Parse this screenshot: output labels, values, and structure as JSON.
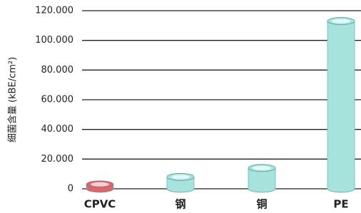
{
  "chart_data": {
    "type": "bar",
    "ylabel": "细菌含量 (kBE/cm²)",
    "categories": [
      "CPVC",
      "钢",
      "铜",
      "PE"
    ],
    "values": [
      3000,
      8000,
      14000,
      113000
    ],
    "colors": [
      "#e8606a",
      "#a6e3dc",
      "#a6e3dc",
      "#a6e3dc"
    ],
    "ylim": [
      0,
      120000
    ],
    "yticks": [
      0,
      {
        "value": 20000,
        "label": "20.000"
      },
      {
        "value": 40000,
        "label": "40.000"
      },
      {
        "value": 60000,
        "label": "60.000"
      },
      {
        "value": 80000,
        "label": "80.000"
      },
      {
        "value": 100000,
        "label": "100.000"
      },
      {
        "value": 120000,
        "label": "120.000"
      }
    ],
    "grid": true
  }
}
